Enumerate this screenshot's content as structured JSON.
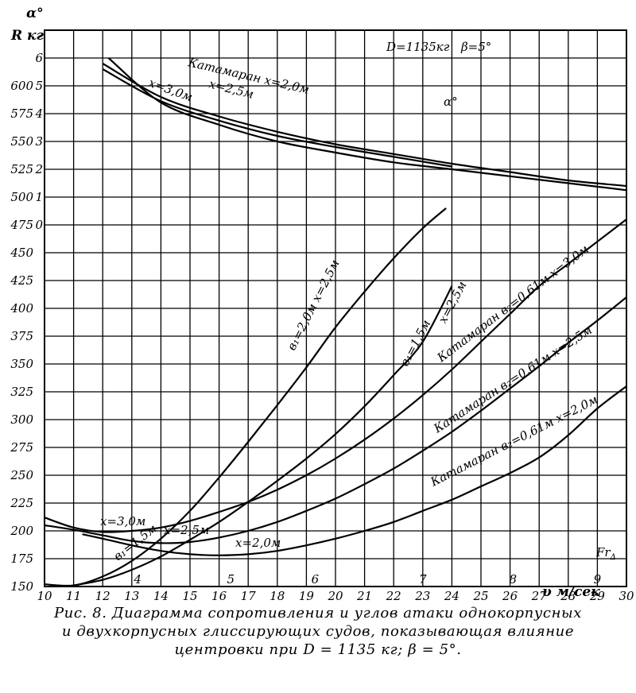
{
  "chart_data": {
    "type": "line",
    "ylabel_left": "R кг",
    "ylabel_alpha": "α°",
    "xlabel": "υ м/сек",
    "fr_label": "Fr",
    "fr_sub": "Δ",
    "xlim": [
      10,
      30
    ],
    "ylim": [
      150,
      650
    ],
    "alpha_lim": [
      0,
      6
    ],
    "x_ticks": [
      10,
      11,
      12,
      13,
      14,
      15,
      16,
      17,
      18,
      19,
      20,
      21,
      22,
      23,
      24,
      25,
      26,
      27,
      28,
      29,
      30
    ],
    "y_ticks": [
      150,
      175,
      200,
      225,
      250,
      275,
      300,
      325,
      350,
      375,
      400,
      425,
      450,
      475,
      500,
      525,
      550,
      575,
      600
    ],
    "alpha_ticks": [
      0,
      1,
      2,
      3,
      4,
      5,
      6
    ],
    "fr_ticks": [
      {
        "label": "4",
        "v": 13.2
      },
      {
        "label": "5",
        "v": 16.4
      },
      {
        "label": "6",
        "v": 19.3
      },
      {
        "label": "7",
        "v": 23.0
      },
      {
        "label": "8",
        "v": 26.1
      },
      {
        "label": "9",
        "v": 29.0
      }
    ],
    "note_d": "D=1135кг",
    "note_beta": "β=5°",
    "alpha_curve_label": "α°",
    "series": [
      {
        "name": "Катамаран x=2,0м",
        "axis": "alpha",
        "x": [
          12,
          14,
          16,
          18,
          20,
          22,
          24,
          26,
          28,
          30
        ],
        "y": [
          5.8,
          4.6,
          3.9,
          3.35,
          2.9,
          2.55,
          2.2,
          1.9,
          1.6,
          1.4
        ]
      },
      {
        "name": "x=2,5м",
        "axis": "alpha",
        "x": [
          12,
          14,
          16,
          18,
          20,
          22,
          24
        ],
        "y": [
          5.6,
          4.45,
          3.75,
          3.2,
          2.8,
          2.45,
          2.1
        ]
      },
      {
        "name": "x=3,0м",
        "axis": "alpha",
        "x": [
          12.2,
          14,
          16,
          18,
          20,
          22,
          24,
          26,
          28,
          30
        ],
        "y": [
          6.0,
          4.4,
          3.6,
          3.0,
          2.6,
          2.25,
          2.0,
          1.75,
          1.5,
          1.25
        ]
      },
      {
        "name": "в1=2,0м x=2,5м",
        "axis": "R",
        "x": [
          10,
          11,
          12,
          13,
          14,
          15,
          16,
          17,
          18,
          19,
          20,
          21,
          22,
          23,
          23.8
        ],
        "y": [
          152,
          151,
          159,
          173,
          193,
          218,
          248,
          280,
          313,
          347,
          383,
          415,
          445,
          472,
          490
        ]
      },
      {
        "name": "в1=1,5м x=2,5м",
        "axis": "R",
        "x": [
          11,
          12,
          13,
          14,
          15,
          16,
          17,
          18,
          19,
          20,
          21,
          22,
          23,
          24
        ],
        "y": [
          151,
          156,
          165,
          177,
          192,
          208,
          226,
          245,
          265,
          287,
          312,
          340,
          370,
          420
        ]
      },
      {
        "name": "Катамаран в2=0,61м x=3,0м",
        "axis": "R",
        "x": [
          10,
          11,
          12,
          13,
          14,
          15,
          16,
          17,
          18,
          19,
          20,
          21,
          22,
          23,
          24,
          25,
          26,
          27,
          28,
          29,
          30
        ],
        "y": [
          212,
          203,
          199,
          200,
          203,
          209,
          217,
          226,
          237,
          250,
          265,
          282,
          301,
          322,
          345,
          370,
          395,
          420,
          440,
          460,
          480
        ]
      },
      {
        "name": "Катамаран в2=0,61м x=2,5м",
        "axis": "R",
        "x": [
          10,
          11,
          12,
          13,
          14,
          15,
          16,
          17,
          18,
          19,
          20,
          21,
          22,
          23,
          24,
          25,
          26,
          27,
          28,
          29,
          30
        ],
        "y": [
          205,
          201,
          196,
          191,
          189,
          190,
          194,
          200,
          208,
          218,
          229,
          242,
          256,
          272,
          289,
          308,
          328,
          348,
          369,
          389,
          410
        ]
      },
      {
        "name": "Катамаран в2=0,61м x=2,0м",
        "axis": "R",
        "x": [
          11.3,
          12,
          13,
          14,
          15,
          16,
          17,
          18,
          19,
          20,
          21,
          22,
          23,
          24,
          25,
          26,
          27,
          28,
          29,
          30
        ],
        "y": [
          197,
          193,
          187,
          182,
          179,
          178,
          179,
          182,
          187,
          193,
          200,
          208,
          218,
          228,
          240,
          252,
          266,
          286,
          310,
          330
        ]
      }
    ]
  },
  "labels": {
    "alpha_kat": "Катамаран  x=2,0м",
    "alpha_25": "x=2,5м",
    "alpha_30": "x=3,0м",
    "b1_20": "в₁=2,0м  x=2,5м",
    "b1_15": "в₁=1,5м",
    "b1_15_x": "x=2,5м",
    "kat_30": "Катамаран  в₂=0,61м  x=3,0м",
    "kat_25": "Катамаран  в₂=0,61м  x=2,5м",
    "kat_20": "Катамаран  в₂=0,61м  x=2,0м",
    "low_30": "x=3,0м",
    "low_25": "x=2,5м",
    "low_20": "x=2,0м",
    "low_b1": "в₁=1,5м"
  },
  "caption_line1": "Рис. 8. Диаграмма сопротивления и углов атаки однокорпусных",
  "caption_line2": "и двухкорпусных глиссирующих судов, показывающая влияние",
  "caption_line3": "центровки при D = 1135 кг; β = 5°."
}
